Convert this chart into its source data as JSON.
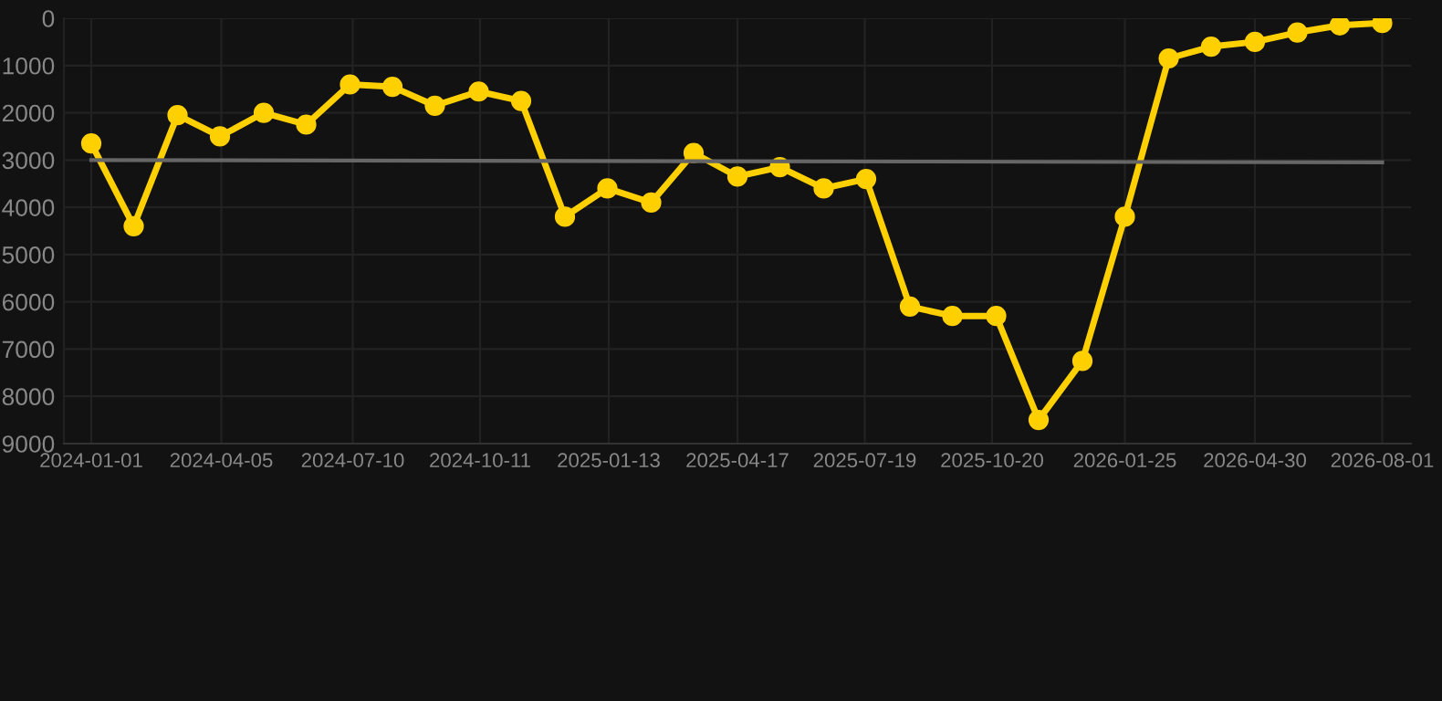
{
  "chart_data": {
    "type": "line",
    "x": [
      "2024-01-01",
      "2024-02-01",
      "2024-03-04",
      "2024-04-04",
      "2024-05-06",
      "2024-06-06",
      "2024-07-08",
      "2024-08-08",
      "2024-09-08",
      "2024-10-10",
      "2024-11-10",
      "2024-12-12",
      "2025-01-12",
      "2025-02-13",
      "2025-03-16",
      "2025-04-17",
      "2025-05-18",
      "2025-06-19",
      "2025-07-20",
      "2025-08-21",
      "2025-09-21",
      "2025-10-23",
      "2025-11-23",
      "2025-12-25",
      "2026-01-25",
      "2026-02-26",
      "2026-03-29",
      "2026-04-30",
      "2026-05-31",
      "2026-07-01",
      "2026-08-01"
    ],
    "series": [
      {
        "color": "#ffd000",
        "marker": "circle",
        "values": [
          2650,
          4400,
          2050,
          2500,
          2000,
          2250,
          1400,
          1450,
          1850,
          1550,
          1750,
          4200,
          3600,
          3900,
          2850,
          3350,
          3150,
          3600,
          3400,
          6100,
          6300,
          6300,
          8500,
          7250,
          4200,
          850,
          600,
          500,
          300,
          150,
          100
        ]
      },
      {
        "color": "#666666",
        "marker": "none",
        "x": [
          "2024-01-01",
          "2026-08-01"
        ],
        "values": [
          3000,
          3050
        ]
      }
    ],
    "xlim": [
      "2023-12-12",
      "2026-08-22"
    ],
    "xticks": [
      "2024-01-01",
      "2024-04-05",
      "2024-07-10",
      "2024-10-11",
      "2025-01-13",
      "2025-04-17",
      "2025-07-19",
      "2025-10-20",
      "2026-01-25",
      "2026-04-30",
      "2026-08-01"
    ],
    "ylim": [
      9000,
      0
    ],
    "yticks": [
      0,
      1000,
      2000,
      3000,
      4000,
      5000,
      6000,
      7000,
      8000,
      9000
    ],
    "grid": true,
    "line_style": "solid"
  }
}
